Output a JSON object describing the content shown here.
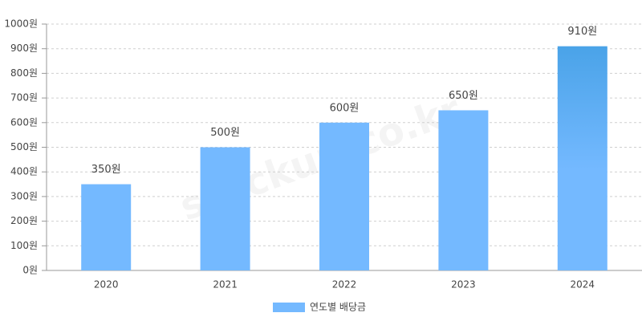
{
  "chart_data": {
    "type": "bar",
    "categories": [
      "2020",
      "2021",
      "2022",
      "2023",
      "2024"
    ],
    "series": [
      {
        "name": "연도별 배당금",
        "color": "#74b9ff",
        "values": [
          350,
          500,
          600,
          650,
          910
        ],
        "value_labels": [
          "350원",
          "500원",
          "600원",
          "650원",
          "910원"
        ]
      }
    ],
    "highlight_color": "#4aa3e8",
    "ylim": [
      0,
      1000
    ],
    "yticks": [
      {
        "value": 0,
        "label": "0원"
      },
      {
        "value": 100,
        "label": "100원"
      },
      {
        "value": 200,
        "label": "200원"
      },
      {
        "value": 300,
        "label": "300원"
      },
      {
        "value": 400,
        "label": "400원"
      },
      {
        "value": 500,
        "label": "500원"
      },
      {
        "value": 600,
        "label": "600원"
      },
      {
        "value": 700,
        "label": "700원"
      },
      {
        "value": 800,
        "label": "800원"
      },
      {
        "value": 900,
        "label": "900원"
      },
      {
        "value": 1000,
        "label": "1000원"
      }
    ],
    "grid": true,
    "legend": "bottom",
    "watermark": "stockup.co.kr"
  }
}
